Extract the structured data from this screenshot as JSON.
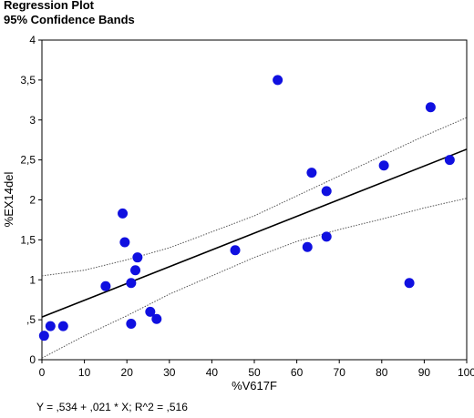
{
  "chart_data": {
    "type": "scatter",
    "title": "Regression Plot",
    "subtitle": "95% Confidence Bands",
    "xlabel": "%V617F",
    "ylabel": "%EX14del",
    "xlim": [
      0,
      100
    ],
    "ylim": [
      0,
      4
    ],
    "x_ticks": [
      "0",
      "10",
      "20",
      "30",
      "40",
      "50",
      "60",
      "70",
      "80",
      "90",
      "100"
    ],
    "y_ticks": [
      "0",
      ",5",
      "1",
      "1,5",
      "2",
      "2,5",
      "3",
      "3,5",
      "4"
    ],
    "equation": "Y = ,534 + ,021 * X; R^2 = ,516",
    "regression": {
      "intercept": 0.534,
      "slope": 0.021
    },
    "confidence_upper": [
      [
        0,
        1.05
      ],
      [
        10,
        1.12
      ],
      [
        20,
        1.25
      ],
      [
        30,
        1.4
      ],
      [
        40,
        1.6
      ],
      [
        50,
        1.8
      ],
      [
        60,
        2.05
      ],
      [
        70,
        2.3
      ],
      [
        80,
        2.55
      ],
      [
        90,
        2.8
      ],
      [
        100,
        3.03
      ]
    ],
    "confidence_lower": [
      [
        0,
        0.02
      ],
      [
        10,
        0.3
      ],
      [
        20,
        0.55
      ],
      [
        30,
        0.82
      ],
      [
        40,
        1.05
      ],
      [
        50,
        1.28
      ],
      [
        60,
        1.48
      ],
      [
        70,
        1.63
      ],
      [
        80,
        1.76
      ],
      [
        90,
        1.9
      ],
      [
        100,
        2.02
      ]
    ],
    "points": [
      {
        "x": 0.5,
        "y": 0.3
      },
      {
        "x": 2,
        "y": 0.42
      },
      {
        "x": 5,
        "y": 0.42
      },
      {
        "x": 15,
        "y": 0.92
      },
      {
        "x": 19,
        "y": 1.83
      },
      {
        "x": 19.5,
        "y": 1.47
      },
      {
        "x": 21,
        "y": 0.96
      },
      {
        "x": 21,
        "y": 0.45
      },
      {
        "x": 22,
        "y": 1.12
      },
      {
        "x": 22.5,
        "y": 1.28
      },
      {
        "x": 25.5,
        "y": 0.6
      },
      {
        "x": 27,
        "y": 0.51
      },
      {
        "x": 45.5,
        "y": 1.37
      },
      {
        "x": 55.5,
        "y": 3.5
      },
      {
        "x": 62.5,
        "y": 1.41
      },
      {
        "x": 63.5,
        "y": 2.34
      },
      {
        "x": 67,
        "y": 1.54
      },
      {
        "x": 67,
        "y": 2.11
      },
      {
        "x": 80.5,
        "y": 2.43
      },
      {
        "x": 86.5,
        "y": 0.96
      },
      {
        "x": 91.5,
        "y": 3.16
      },
      {
        "x": 96,
        "y": 2.5
      }
    ],
    "point_color": "#1010e0",
    "grid": false
  }
}
